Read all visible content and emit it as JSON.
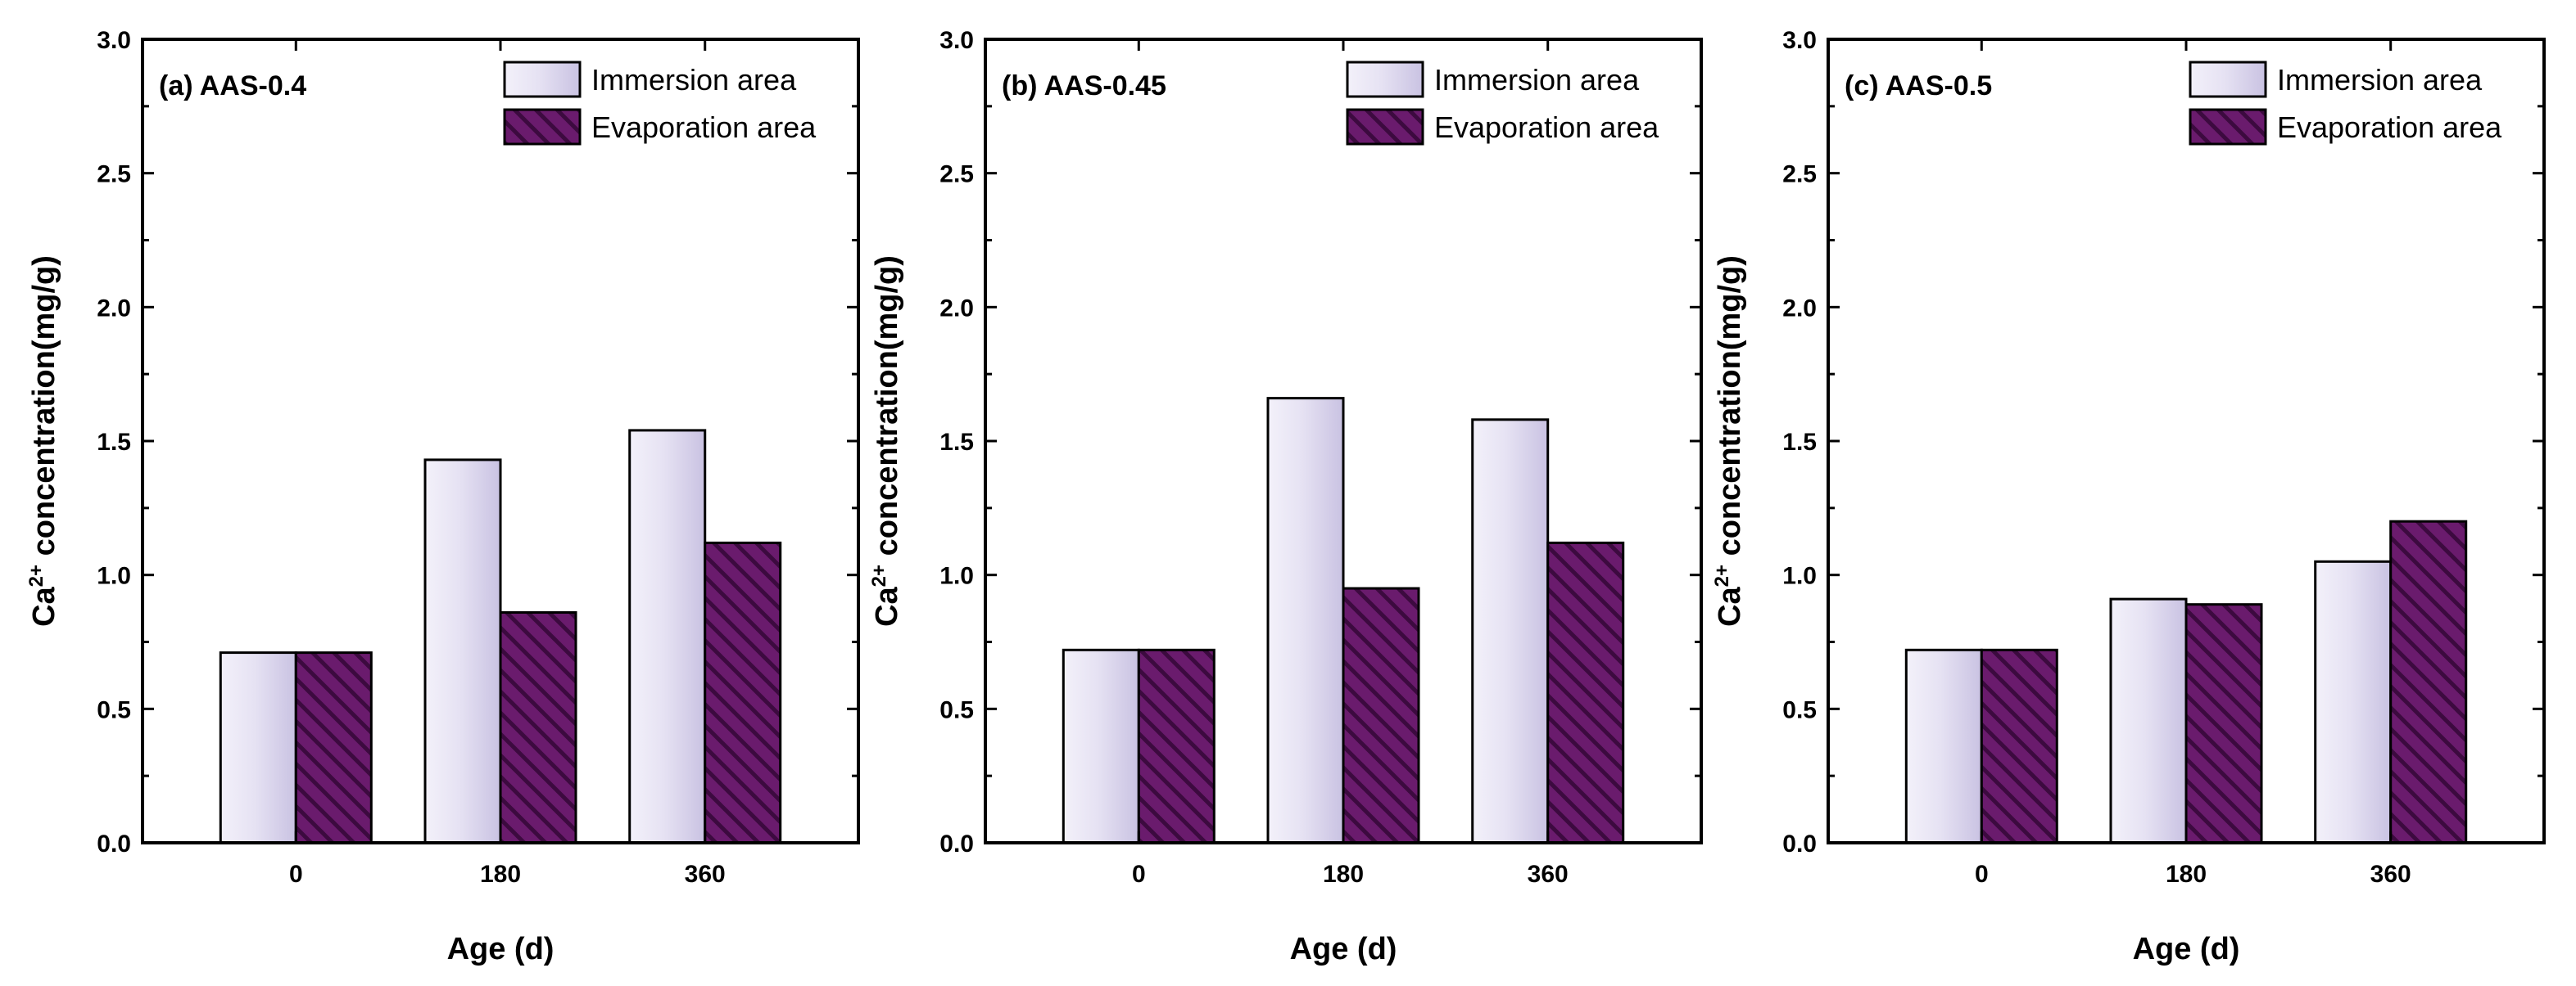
{
  "figure": {
    "series_names": [
      "Immersion area",
      "Evaporation area"
    ]
  },
  "colors": {
    "immersion_light": "#eeebf8",
    "immersion_dark": "#c6bfe0",
    "evaporation_base": "#6a1b6d",
    "evaporation_hatch": "#3c0a3f",
    "axis": "#000000"
  },
  "chart_data": [
    {
      "type": "bar",
      "title": "(a) AAS-0.4",
      "xlabel": "Age (d)",
      "ylabel_prefix": "Ca",
      "ylabel_sup": "2+",
      "ylabel_suffix": " concentration(mg/g)",
      "categories": [
        "0",
        "180",
        "360"
      ],
      "ylim": [
        0,
        3.0
      ],
      "yticks": [
        "0.0",
        "0.5",
        "1.0",
        "1.5",
        "2.0",
        "2.5",
        "3.0"
      ],
      "legend_position": "top-right",
      "series": [
        {
          "name": "Immersion area",
          "values": [
            0.71,
            1.43,
            1.54
          ]
        },
        {
          "name": "Evaporation area",
          "values": [
            0.71,
            0.86,
            1.12
          ]
        }
      ]
    },
    {
      "type": "bar",
      "title": "(b) AAS-0.45",
      "xlabel": "Age (d)",
      "ylabel_prefix": "Ca",
      "ylabel_sup": "2+",
      "ylabel_suffix": " concentration(mg/g)",
      "categories": [
        "0",
        "180",
        "360"
      ],
      "ylim": [
        0,
        3.0
      ],
      "yticks": [
        "0.0",
        "0.5",
        "1.0",
        "1.5",
        "2.0",
        "2.5",
        "3.0"
      ],
      "legend_position": "top-right",
      "series": [
        {
          "name": "Immersion area",
          "values": [
            0.72,
            1.66,
            1.58
          ]
        },
        {
          "name": "Evaporation area",
          "values": [
            0.72,
            0.95,
            1.12
          ]
        }
      ]
    },
    {
      "type": "bar",
      "title": "(c) AAS-0.5",
      "xlabel": "Age (d)",
      "ylabel_prefix": "Ca",
      "ylabel_sup": "2+",
      "ylabel_suffix": " concentration(mg/g)",
      "categories": [
        "0",
        "180",
        "360"
      ],
      "ylim": [
        0,
        3.0
      ],
      "yticks": [
        "0.0",
        "0.5",
        "1.0",
        "1.5",
        "2.0",
        "2.5",
        "3.0"
      ],
      "legend_position": "top-right",
      "series": [
        {
          "name": "Immersion area",
          "values": [
            0.72,
            0.91,
            1.05
          ]
        },
        {
          "name": "Evaporation area",
          "values": [
            0.72,
            0.89,
            1.2
          ]
        }
      ]
    }
  ]
}
